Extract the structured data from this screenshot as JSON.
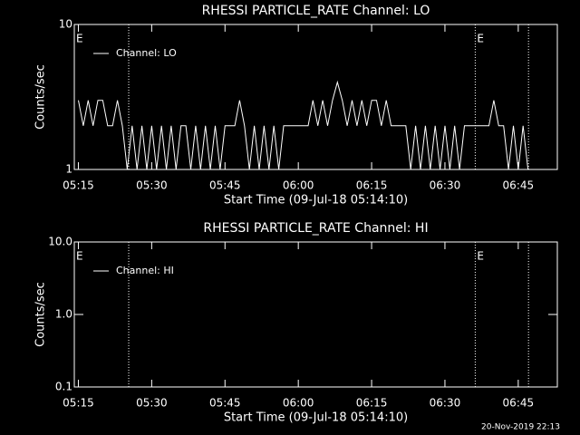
{
  "chart_data": [
    {
      "type": "line",
      "title": "RHESSI PARTICLE_RATE Channel: LO",
      "xlabel": "Start Time (09-Jul-18 05:14:10)",
      "ylabel": "Counts/sec",
      "ylog": true,
      "ylim": [
        1,
        10
      ],
      "yticks": [
        1,
        10
      ],
      "xlim": [
        314.17,
        413
      ],
      "xticks": [
        {
          "value": 315,
          "label": "05:15"
        },
        {
          "value": 330,
          "label": "05:30"
        },
        {
          "value": 345,
          "label": "05:45"
        },
        {
          "value": 360,
          "label": "06:00"
        },
        {
          "value": 375,
          "label": "06:15"
        },
        {
          "value": 390,
          "label": "06:30"
        },
        {
          "value": 405,
          "label": "06:45"
        }
      ],
      "legend": "upper left",
      "vlines": [
        325.3,
        396.2,
        407.1
      ],
      "annotations": [
        {
          "text": "E",
          "x": 314.17
        },
        {
          "text": "E",
          "x": 396.2
        }
      ],
      "series": [
        {
          "name": "Channel: LO",
          "color": "#ffffff",
          "x": [
            315,
            316,
            317,
            318,
            319,
            320,
            321,
            322,
            323,
            324,
            325,
            326,
            327,
            328,
            329,
            330,
            331,
            332,
            333,
            334,
            335,
            336,
            337,
            338,
            339,
            340,
            341,
            342,
            343,
            344,
            345,
            346,
            347,
            348,
            349,
            350,
            351,
            352,
            353,
            354,
            355,
            356,
            357,
            358,
            359,
            360,
            361,
            362,
            363,
            364,
            365,
            366,
            367,
            368,
            369,
            370,
            371,
            372,
            373,
            374,
            375,
            376,
            377,
            378,
            379,
            380,
            381,
            382,
            383,
            384,
            385,
            386,
            387,
            388,
            389,
            390,
            391,
            392,
            393,
            394,
            395,
            396,
            397,
            398,
            399,
            400,
            401,
            402,
            403,
            404,
            405,
            406,
            407
          ],
          "values": [
            3,
            2,
            3,
            2,
            3,
            3,
            2,
            2,
            3,
            2,
            1,
            2,
            1,
            2,
            1,
            2,
            1,
            2,
            1,
            2,
            1,
            2,
            2,
            1,
            2,
            1,
            2,
            1,
            2,
            1,
            2,
            2,
            2,
            3,
            2,
            1,
            2,
            1,
            2,
            1,
            2,
            1,
            2,
            2,
            2,
            2,
            2,
            2,
            3,
            2,
            3,
            2,
            3,
            4,
            3,
            2,
            3,
            2,
            3,
            2,
            3,
            3,
            2,
            3,
            2,
            2,
            2,
            2,
            1,
            2,
            1,
            2,
            1,
            2,
            1,
            2,
            1,
            2,
            1,
            2,
            2,
            2,
            2,
            2,
            2,
            3,
            2,
            2,
            1,
            2,
            1,
            2,
            1
          ]
        }
      ]
    },
    {
      "type": "line",
      "title": "RHESSI PARTICLE_RATE Channel: HI",
      "xlabel": "Start Time (09-Jul-18 05:14:10)",
      "ylabel": "Counts/sec",
      "ylog": true,
      "ylim": [
        0.1,
        10
      ],
      "yticks": [
        {
          "value": 0.1,
          "label": "0.1"
        },
        {
          "value": 1,
          "label": "1.0"
        },
        {
          "value": 10,
          "label": "10.0"
        }
      ],
      "xlim": [
        314.17,
        413
      ],
      "xticks": [
        {
          "value": 315,
          "label": "05:15"
        },
        {
          "value": 330,
          "label": "05:30"
        },
        {
          "value": 345,
          "label": "05:45"
        },
        {
          "value": 360,
          "label": "06:00"
        },
        {
          "value": 375,
          "label": "06:15"
        },
        {
          "value": 390,
          "label": "06:30"
        },
        {
          "value": 405,
          "label": "06:45"
        }
      ],
      "legend": "upper left",
      "vlines": [
        325.3,
        396.2,
        407.1
      ],
      "annotations": [
        {
          "text": "E",
          "x": 314.17
        },
        {
          "text": "E",
          "x": 396.2
        }
      ],
      "series": [
        {
          "name": "Channel: HI",
          "color": "#ffffff",
          "x": [],
          "values": []
        }
      ]
    }
  ],
  "footer": "20-Nov-2019 22:13"
}
